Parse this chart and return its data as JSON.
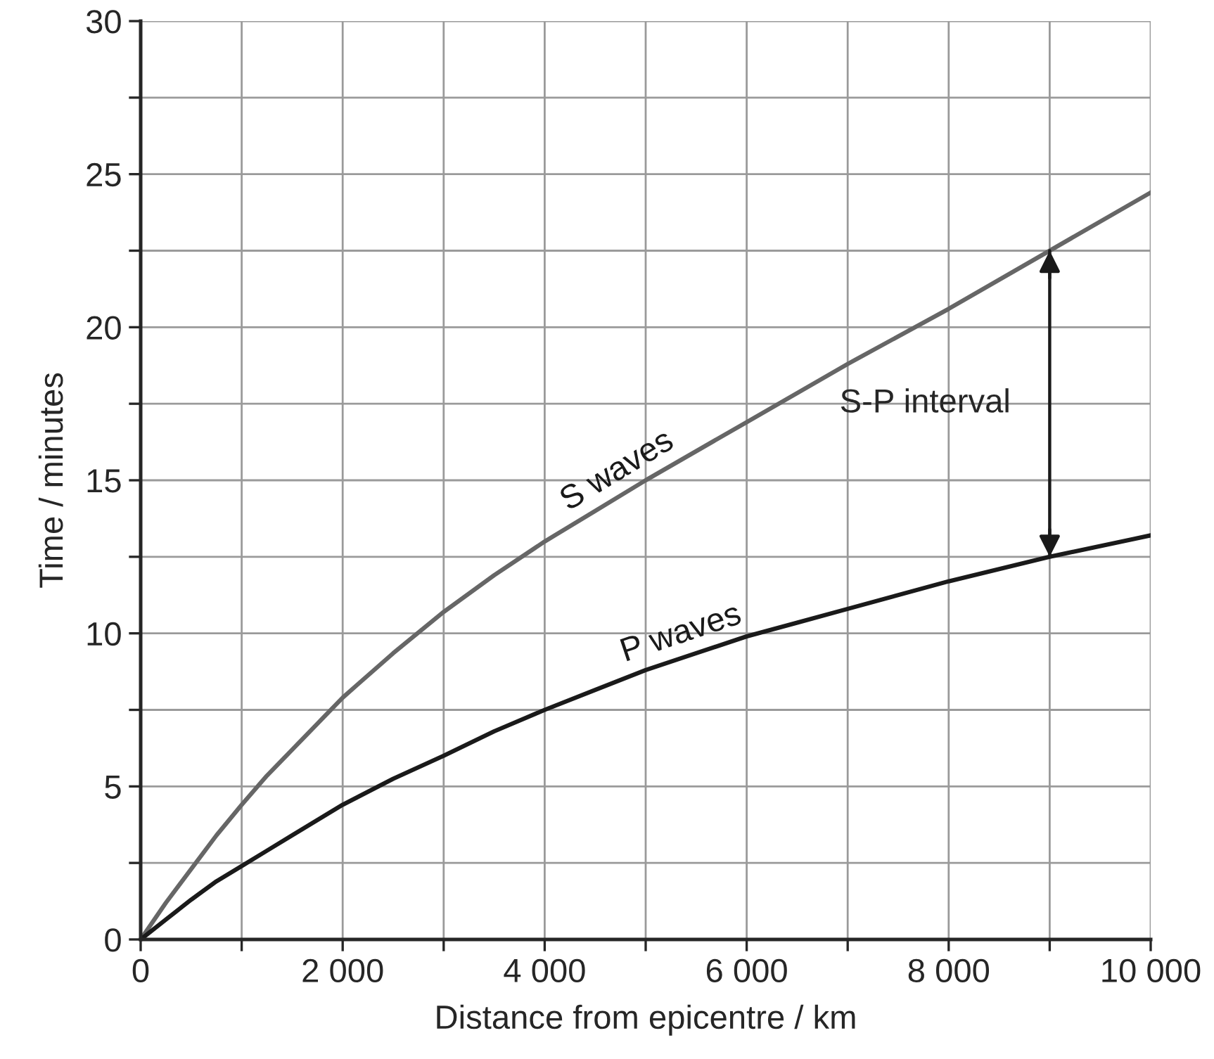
{
  "chart_data": {
    "type": "line",
    "xlabel": "Distance from epicentre / km",
    "ylabel": "Time / minutes",
    "series": [
      {
        "name": "S waves",
        "color": "#666666",
        "x": [
          0,
          250,
          500,
          750,
          1000,
          1250,
          1500,
          1750,
          2000,
          2500,
          3000,
          3500,
          4000,
          4500,
          5000,
          6000,
          7000,
          8000,
          9000,
          10000
        ],
        "values": [
          0,
          1.2,
          2.3,
          3.4,
          4.4,
          5.35,
          6.2,
          7.05,
          7.9,
          9.35,
          10.7,
          11.9,
          13.0,
          14.0,
          15.0,
          16.9,
          18.8,
          20.6,
          22.5,
          24.4
        ]
      },
      {
        "name": "P waves",
        "color": "#1a1a1a",
        "x": [
          0,
          250,
          500,
          750,
          1000,
          1250,
          1500,
          1750,
          2000,
          2500,
          3000,
          3500,
          4000,
          4500,
          5000,
          5500,
          6000,
          6500,
          7000,
          8000,
          9000,
          10000
        ],
        "values": [
          0,
          0.65,
          1.3,
          1.9,
          2.4,
          2.9,
          3.4,
          3.9,
          4.4,
          5.25,
          6.0,
          6.8,
          7.5,
          8.15,
          8.8,
          9.35,
          9.9,
          10.35,
          10.8,
          11.7,
          12.5,
          13.2
        ]
      }
    ],
    "ref_lines": [
      {
        "axis": "x",
        "value": 9000,
        "label": "S-P interval",
        "color": "#1a1a1a",
        "line_style": "solid"
      }
    ],
    "xlim": [
      0,
      10000
    ],
    "ylim": [
      0,
      30
    ],
    "xticks": [
      0,
      {
        "value": 1000,
        "label": null
      },
      {
        "value": 2000,
        "label": "2 000"
      },
      {
        "value": 3000,
        "label": null
      },
      {
        "value": 4000,
        "label": "4 000"
      },
      {
        "value": 5000,
        "label": null
      },
      {
        "value": 6000,
        "label": "6 000"
      },
      {
        "value": 7000,
        "label": null
      },
      {
        "value": 8000,
        "label": "8 000"
      },
      {
        "value": 9000,
        "label": null
      },
      {
        "value": 10000,
        "label": "10 000"
      }
    ],
    "yticks": [
      0,
      {
        "value": 2.5,
        "label": null
      },
      5,
      {
        "value": 7.5,
        "label": null
      },
      10,
      {
        "value": 12.5,
        "label": null
      },
      15,
      {
        "value": 17.5,
        "label": null
      },
      20,
      {
        "value": 22.5,
        "label": null
      },
      25,
      {
        "value": 27.5,
        "label": null
      },
      30
    ],
    "grid": true,
    "legend": false,
    "marker": "none",
    "line_style": "solid"
  }
}
